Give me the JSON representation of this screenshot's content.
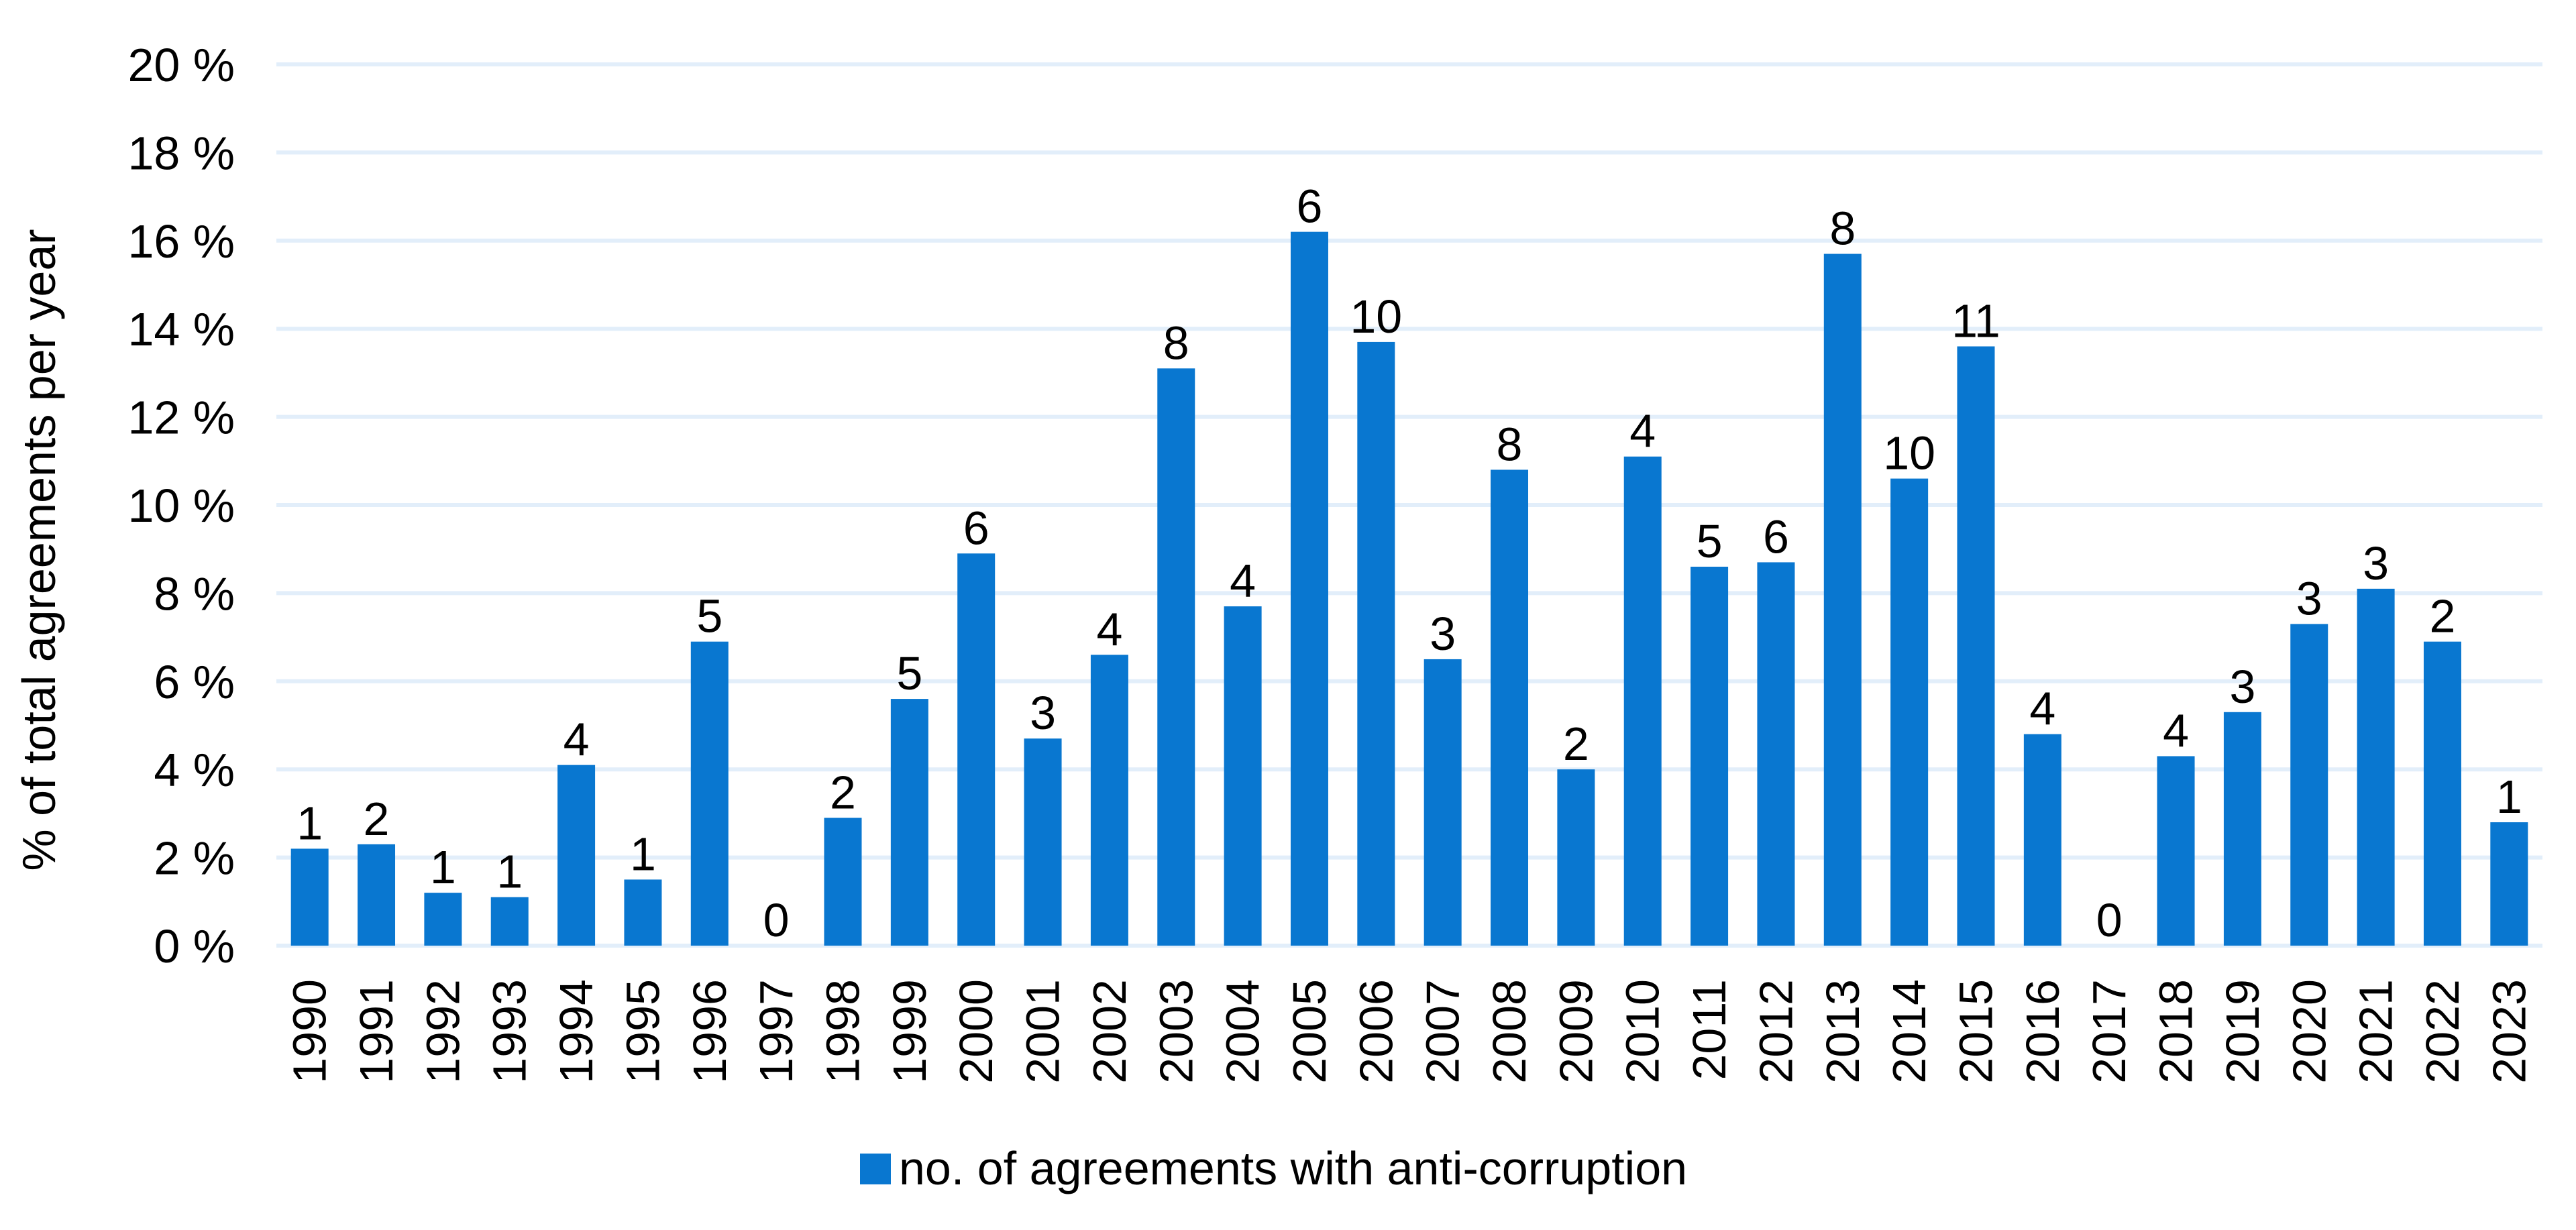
{
  "chart_data": {
    "type": "bar",
    "title": "",
    "xlabel": "",
    "ylabel": "% of total agreements per year",
    "ylim": [
      0,
      20
    ],
    "ytick_step": 2,
    "ytick_suffix": " %",
    "grid": true,
    "legend_position": "bottom",
    "colors": {
      "bar": "#0977d0",
      "grid": "#e2eefa"
    },
    "categories": [
      "1990",
      "1991",
      "1992",
      "1993",
      "1994",
      "1995",
      "1996",
      "1997",
      "1998",
      "1999",
      "2000",
      "2001",
      "2002",
      "2003",
      "2004",
      "2005",
      "2006",
      "2007",
      "2008",
      "2009",
      "2010",
      "2011",
      "2012",
      "2013",
      "2014",
      "2015",
      "2016",
      "2017",
      "2018",
      "2019",
      "2020",
      "2021",
      "2022",
      "2023"
    ],
    "series": [
      {
        "name": "no. of agreements with anti-corruption",
        "values": [
          2.2,
          2.3,
          1.2,
          1.1,
          4.1,
          1.5,
          6.9,
          0,
          2.9,
          5.6,
          8.9,
          4.7,
          6.6,
          13.1,
          7.7,
          16.2,
          13.7,
          6.5,
          10.8,
          4.0,
          11.1,
          8.6,
          8.7,
          15.7,
          10.6,
          13.6,
          4.8,
          0,
          4.3,
          5.3,
          7.3,
          8.1,
          6.9,
          2.8
        ],
        "labels": [
          "1",
          "2",
          "1",
          "1",
          "4",
          "1",
          "5",
          "0",
          "2",
          "5",
          "6",
          "3",
          "4",
          "8",
          "4",
          "6",
          "10",
          "3",
          "8",
          "2",
          "4",
          "5",
          "6",
          "8",
          "10",
          "11",
          "4",
          "0",
          "4",
          "3",
          "3",
          "3",
          "2",
          "1"
        ]
      }
    ]
  }
}
